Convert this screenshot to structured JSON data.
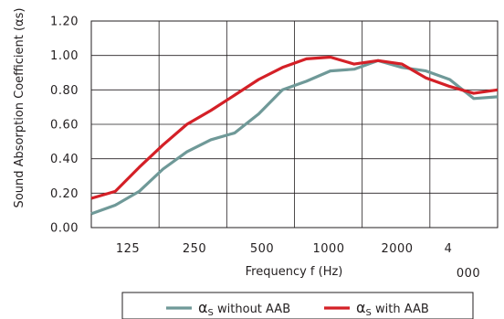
{
  "chart_data": {
    "type": "line",
    "xlabel": "Frequency f (Hz)",
    "ylabel": "Sound Absorption Coefficient (αs)",
    "x_tick_labels": [
      "125",
      "250",
      "500",
      "1000",
      "2000",
      "4",
      "000"
    ],
    "y_tick_labels": [
      "0.00",
      "0.20",
      "0.40",
      "0.60",
      "0.80",
      "1.00",
      "1.20"
    ],
    "ylim": [
      0,
      1.2
    ],
    "grid": true,
    "legend_position": "bottom",
    "x": [
      100,
      125,
      160,
      200,
      250,
      315,
      400,
      500,
      630,
      800,
      1000,
      1250,
      1600,
      2000,
      2500,
      3150,
      4000,
      5000
    ],
    "series": [
      {
        "name": "αs without AAB",
        "legend_symbol": "α",
        "legend_subscript": "S",
        "legend_text": "without AAB",
        "color": "#6f9998",
        "values": [
          0.08,
          0.13,
          0.21,
          0.34,
          0.44,
          0.51,
          0.55,
          0.66,
          0.8,
          0.85,
          0.91,
          0.92,
          0.97,
          0.93,
          0.91,
          0.86,
          0.75,
          0.76
        ]
      },
      {
        "name": "αs with AAB",
        "legend_symbol": "α",
        "legend_subscript": "S",
        "legend_text": "with AAB",
        "color": "#d42027",
        "values": [
          0.17,
          0.21,
          0.35,
          0.48,
          0.6,
          0.68,
          0.77,
          0.86,
          0.93,
          0.98,
          0.99,
          0.95,
          0.97,
          0.95,
          0.87,
          0.82,
          0.78,
          0.8
        ]
      }
    ]
  }
}
